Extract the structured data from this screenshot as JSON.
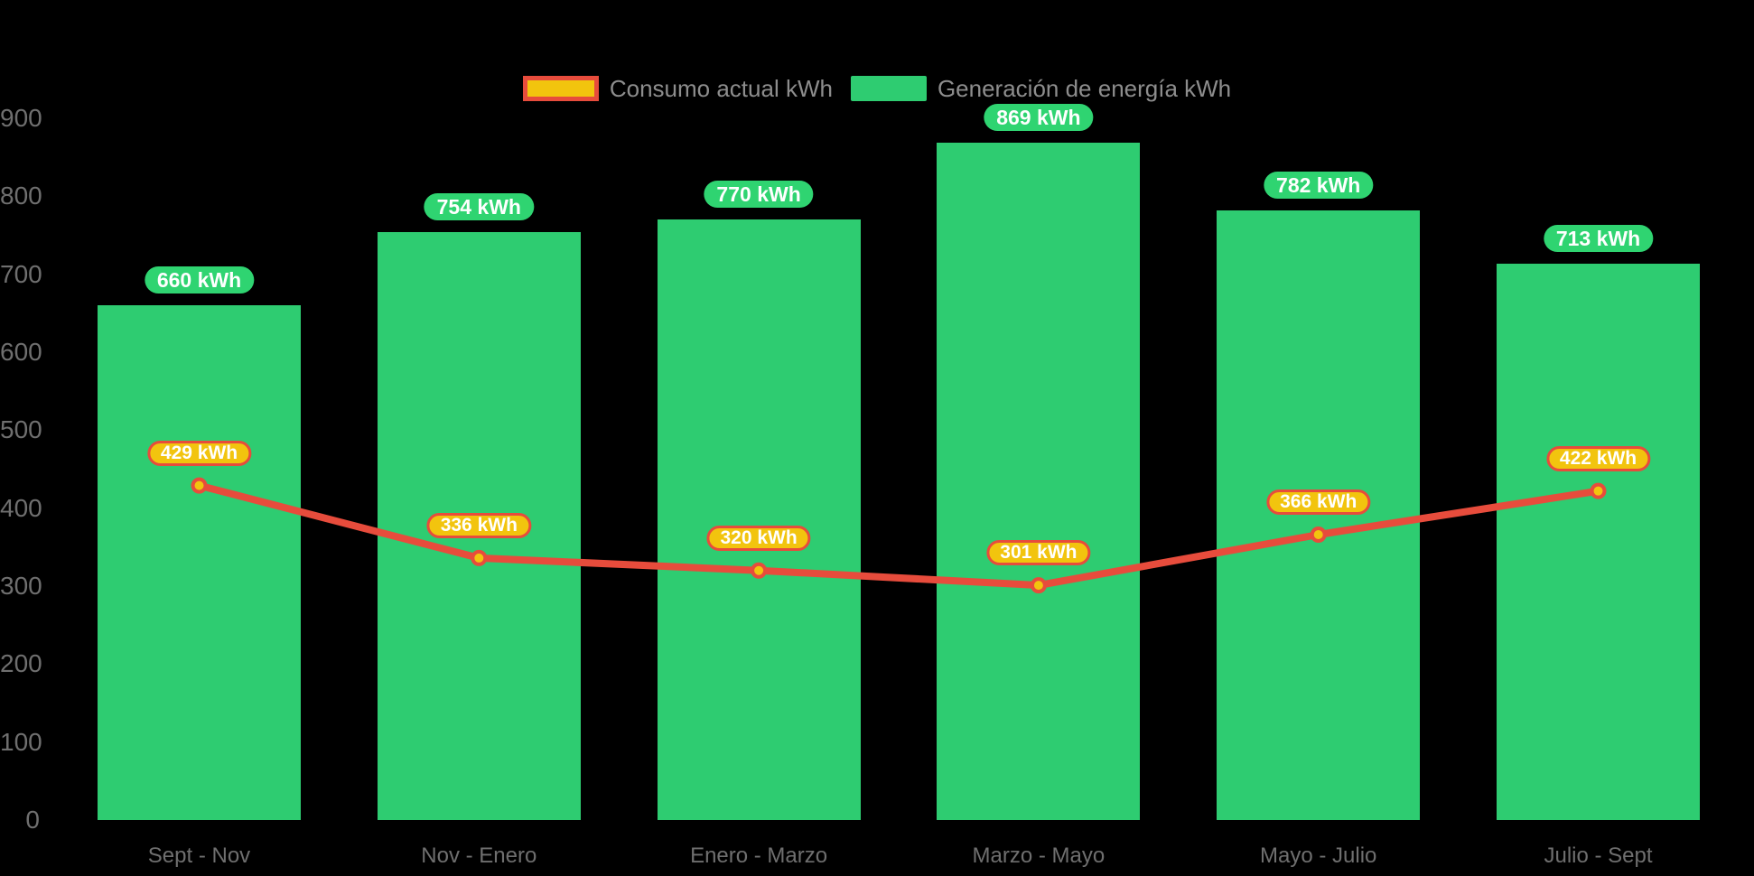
{
  "chart_data": {
    "type": "bar",
    "title": "",
    "xlabel": "",
    "ylabel": "",
    "categories": [
      "Sept - Nov",
      "Nov - Enero",
      "Enero - Marzo",
      "Marzo - Mayo",
      "Mayo - Julio",
      "Julio - Sept"
    ],
    "series": [
      {
        "name": "Consumo actual kWh",
        "kind": "line",
        "values": [
          429,
          336,
          320,
          301,
          366,
          422
        ]
      },
      {
        "name": "Generación de energía kWh",
        "kind": "bar",
        "values": [
          660,
          754,
          770,
          869,
          782,
          713
        ]
      }
    ],
    "value_suffix": " kWh",
    "y_ticks": [
      0,
      100,
      200,
      300,
      400,
      500,
      600,
      700,
      800,
      900
    ],
    "ylim": [
      0,
      900
    ],
    "grid": false,
    "legend_position": "top"
  },
  "colors": {
    "background": "#000000",
    "bar": "#2ecc71",
    "bar_label_bg": "#2fd471",
    "line": "#e74c3c",
    "point_fill": "#f2c40e",
    "point_border": "#e74c3c",
    "consumption_label_bg": "#f2c40e",
    "consumption_label_border": "#e74c3c",
    "label_text": "#ffffff",
    "axis_text": "#6f6f6f",
    "legend_text": "#8d8d8d"
  }
}
